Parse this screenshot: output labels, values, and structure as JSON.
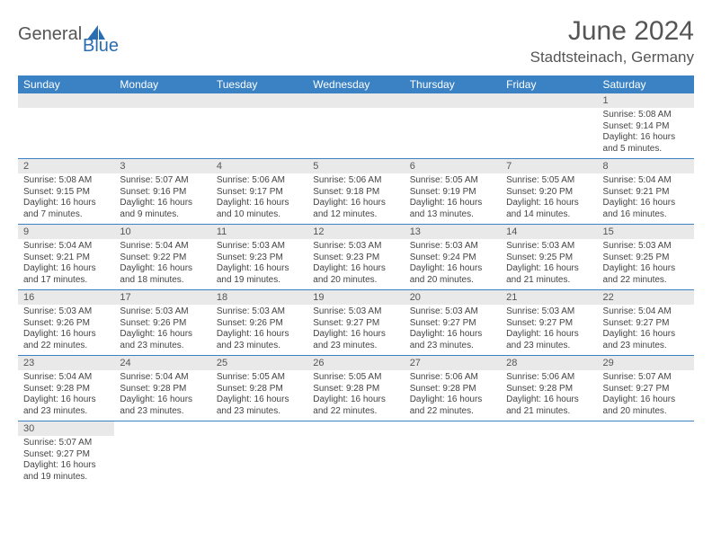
{
  "logo": {
    "part1": "General",
    "part2": "Blue"
  },
  "title": "June 2024",
  "location": "Stadtsteinach, Germany",
  "colors": {
    "header_bg": "#3b82c4",
    "header_text": "#ffffff",
    "daynum_bg": "#e9e9e9",
    "border": "#3b82c4",
    "text": "#444444",
    "logo_gray": "#555555",
    "logo_blue": "#2a6db0"
  },
  "weekdays": [
    "Sunday",
    "Monday",
    "Tuesday",
    "Wednesday",
    "Thursday",
    "Friday",
    "Saturday"
  ],
  "weeks": [
    [
      null,
      null,
      null,
      null,
      null,
      null,
      {
        "n": "1",
        "sr": "5:08 AM",
        "ss": "9:14 PM",
        "dl": "16 hours and 5 minutes."
      }
    ],
    [
      {
        "n": "2",
        "sr": "5:08 AM",
        "ss": "9:15 PM",
        "dl": "16 hours and 7 minutes."
      },
      {
        "n": "3",
        "sr": "5:07 AM",
        "ss": "9:16 PM",
        "dl": "16 hours and 9 minutes."
      },
      {
        "n": "4",
        "sr": "5:06 AM",
        "ss": "9:17 PM",
        "dl": "16 hours and 10 minutes."
      },
      {
        "n": "5",
        "sr": "5:06 AM",
        "ss": "9:18 PM",
        "dl": "16 hours and 12 minutes."
      },
      {
        "n": "6",
        "sr": "5:05 AM",
        "ss": "9:19 PM",
        "dl": "16 hours and 13 minutes."
      },
      {
        "n": "7",
        "sr": "5:05 AM",
        "ss": "9:20 PM",
        "dl": "16 hours and 14 minutes."
      },
      {
        "n": "8",
        "sr": "5:04 AM",
        "ss": "9:21 PM",
        "dl": "16 hours and 16 minutes."
      }
    ],
    [
      {
        "n": "9",
        "sr": "5:04 AM",
        "ss": "9:21 PM",
        "dl": "16 hours and 17 minutes."
      },
      {
        "n": "10",
        "sr": "5:04 AM",
        "ss": "9:22 PM",
        "dl": "16 hours and 18 minutes."
      },
      {
        "n": "11",
        "sr": "5:03 AM",
        "ss": "9:23 PM",
        "dl": "16 hours and 19 minutes."
      },
      {
        "n": "12",
        "sr": "5:03 AM",
        "ss": "9:23 PM",
        "dl": "16 hours and 20 minutes."
      },
      {
        "n": "13",
        "sr": "5:03 AM",
        "ss": "9:24 PM",
        "dl": "16 hours and 20 minutes."
      },
      {
        "n": "14",
        "sr": "5:03 AM",
        "ss": "9:25 PM",
        "dl": "16 hours and 21 minutes."
      },
      {
        "n": "15",
        "sr": "5:03 AM",
        "ss": "9:25 PM",
        "dl": "16 hours and 22 minutes."
      }
    ],
    [
      {
        "n": "16",
        "sr": "5:03 AM",
        "ss": "9:26 PM",
        "dl": "16 hours and 22 minutes."
      },
      {
        "n": "17",
        "sr": "5:03 AM",
        "ss": "9:26 PM",
        "dl": "16 hours and 23 minutes."
      },
      {
        "n": "18",
        "sr": "5:03 AM",
        "ss": "9:26 PM",
        "dl": "16 hours and 23 minutes."
      },
      {
        "n": "19",
        "sr": "5:03 AM",
        "ss": "9:27 PM",
        "dl": "16 hours and 23 minutes."
      },
      {
        "n": "20",
        "sr": "5:03 AM",
        "ss": "9:27 PM",
        "dl": "16 hours and 23 minutes."
      },
      {
        "n": "21",
        "sr": "5:03 AM",
        "ss": "9:27 PM",
        "dl": "16 hours and 23 minutes."
      },
      {
        "n": "22",
        "sr": "5:04 AM",
        "ss": "9:27 PM",
        "dl": "16 hours and 23 minutes."
      }
    ],
    [
      {
        "n": "23",
        "sr": "5:04 AM",
        "ss": "9:28 PM",
        "dl": "16 hours and 23 minutes."
      },
      {
        "n": "24",
        "sr": "5:04 AM",
        "ss": "9:28 PM",
        "dl": "16 hours and 23 minutes."
      },
      {
        "n": "25",
        "sr": "5:05 AM",
        "ss": "9:28 PM",
        "dl": "16 hours and 23 minutes."
      },
      {
        "n": "26",
        "sr": "5:05 AM",
        "ss": "9:28 PM",
        "dl": "16 hours and 22 minutes."
      },
      {
        "n": "27",
        "sr": "5:06 AM",
        "ss": "9:28 PM",
        "dl": "16 hours and 22 minutes."
      },
      {
        "n": "28",
        "sr": "5:06 AM",
        "ss": "9:28 PM",
        "dl": "16 hours and 21 minutes."
      },
      {
        "n": "29",
        "sr": "5:07 AM",
        "ss": "9:27 PM",
        "dl": "16 hours and 20 minutes."
      }
    ],
    [
      {
        "n": "30",
        "sr": "5:07 AM",
        "ss": "9:27 PM",
        "dl": "16 hours and 19 minutes."
      },
      null,
      null,
      null,
      null,
      null,
      null
    ]
  ],
  "labels": {
    "sunrise": "Sunrise:",
    "sunset": "Sunset:",
    "daylight": "Daylight:"
  }
}
